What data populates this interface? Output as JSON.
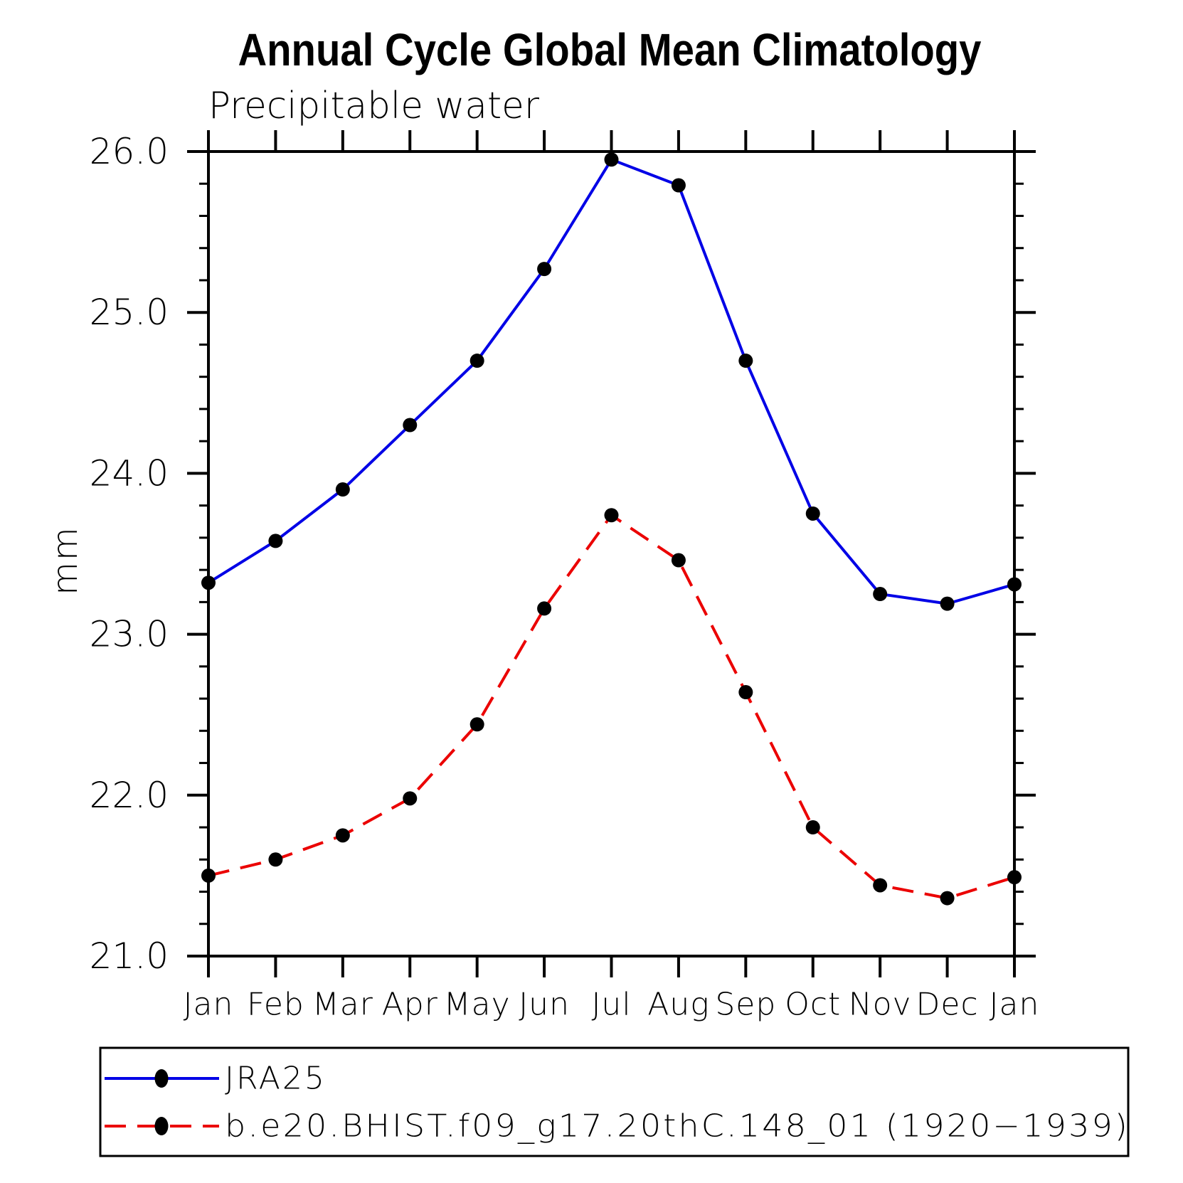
{
  "chart_data": {
    "type": "line",
    "title": "Annual Cycle Global Mean Climatology",
    "subtitle": "Precipitable water",
    "ylabel": "mm",
    "xlabel": "",
    "categories": [
      "Jan",
      "Feb",
      "Mar",
      "Apr",
      "May",
      "Jun",
      "Jul",
      "Aug",
      "Sep",
      "Oct",
      "Nov",
      "Dec",
      "Jan"
    ],
    "series": [
      {
        "name": "JRA25",
        "line_style": "solid",
        "color": "#0000e6",
        "marker": "filled-circle",
        "marker_color": "#000000",
        "values": [
          23.32,
          23.58,
          23.9,
          24.3,
          24.7,
          25.27,
          25.95,
          25.79,
          24.7,
          23.75,
          23.25,
          23.19,
          23.31
        ]
      },
      {
        "name": "b.e20.BHIST.f09_g17.20thC.148_01 (1920−1939)",
        "line_style": "dashed",
        "color": "#eb0000",
        "marker": "filled-circle",
        "marker_color": "#000000",
        "values": [
          21.5,
          21.6,
          21.75,
          21.98,
          22.44,
          23.16,
          23.74,
          23.46,
          22.64,
          21.8,
          21.44,
          21.36,
          21.49
        ]
      }
    ],
    "ylim": [
      21.0,
      26.0
    ],
    "y_major_tick_labels": [
      "26.0",
      "25.0",
      "24.0",
      "23.0",
      "22.0",
      "21.0"
    ],
    "y_major_step": 1.0,
    "y_minor_step": 0.2,
    "grid": false,
    "legend_position": "bottom-left-box"
  }
}
